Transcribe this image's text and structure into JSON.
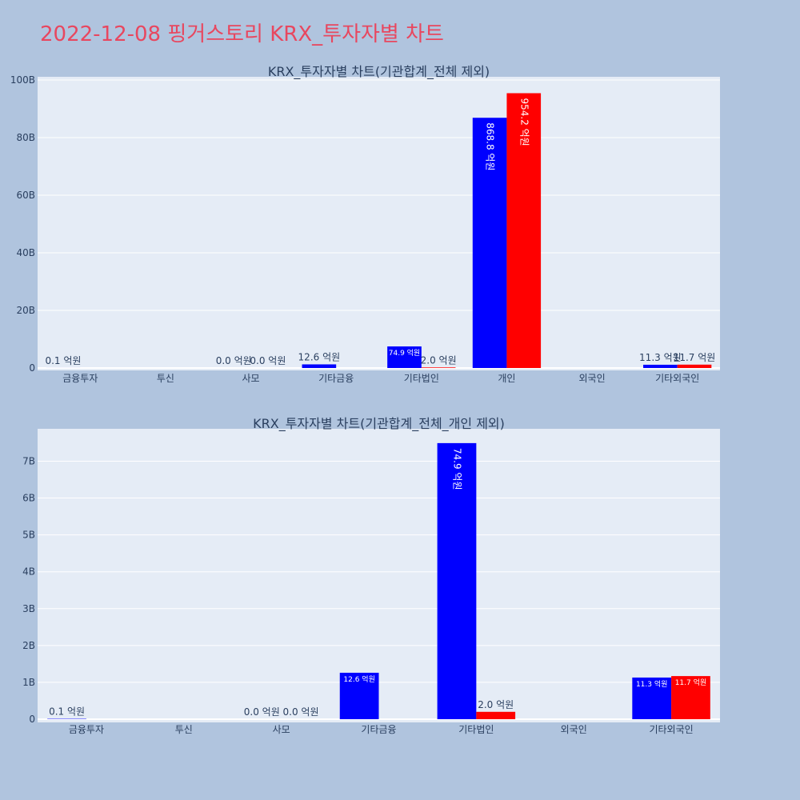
{
  "page": {
    "title": "2022-12-08 핑거스토리 KRX_투자자별 차트",
    "background": "#b0c4de",
    "title_color": "#e8475f"
  },
  "colors": {
    "plot_bg": "#e5ecf6",
    "buy": "#0000ff",
    "sell": "#ff0000",
    "grid": "#ffffff",
    "text": "#2a3f5f"
  },
  "chart_data": [
    {
      "type": "bar",
      "title": "KRX_투자자별 차트(기관합계_전체 제외)",
      "categories": [
        "금융투자",
        "투신",
        "사모",
        "기타금융",
        "기타법인",
        "개인",
        "외국인",
        "기타외국인"
      ],
      "y_tick_labels": [
        "0",
        "20B",
        "40B",
        "60B",
        "80B",
        "100B"
      ],
      "y_tick_values": [
        0,
        20,
        40,
        60,
        80,
        100
      ],
      "ylim": [
        0,
        100
      ],
      "y_unit": "B",
      "grid": true,
      "series": [
        {
          "color": "#0000ff",
          "values": [
            0.01,
            0,
            0,
            1.26,
            7.49,
            86.88,
            0,
            1.13
          ],
          "labels": [
            "0.1 억원",
            "",
            "0.0 억원",
            "12.6 억원",
            "74.9 억원",
            "868.8 억원",
            "",
            "11.3 억원"
          ]
        },
        {
          "color": "#ff0000",
          "values": [
            0,
            0,
            0,
            0,
            0.2,
            95.42,
            0,
            1.17
          ],
          "labels": [
            "",
            "",
            "0.0 억원",
            "",
            "2.0 억원",
            "954.2 억원",
            "",
            "11.7 억원"
          ]
        }
      ]
    },
    {
      "type": "bar",
      "title": "KRX_투자자별 차트(기관합계_전체_개인 제외)",
      "categories": [
        "금융투자",
        "투신",
        "사모",
        "기타금융",
        "기타법인",
        "외국인",
        "기타외국인"
      ],
      "y_tick_labels": [
        "0",
        "1B",
        "2B",
        "3B",
        "4B",
        "5B",
        "6B",
        "7B"
      ],
      "y_tick_values": [
        0,
        1,
        2,
        3,
        4,
        5,
        6,
        7
      ],
      "ylim": [
        0,
        7.9
      ],
      "y_unit": "B",
      "grid": true,
      "series": [
        {
          "color": "#0000ff",
          "values": [
            0.01,
            0,
            0,
            1.26,
            7.49,
            0,
            1.13
          ],
          "labels": [
            "0.1 억원",
            "",
            "0.0 억원",
            "12.6 억원",
            "74.9 억원",
            "",
            "11.3 억원"
          ]
        },
        {
          "color": "#ff0000",
          "values": [
            0,
            0,
            0,
            0,
            0.2,
            0,
            1.17
          ],
          "labels": [
            "",
            "",
            "0.0 억원",
            "",
            "2.0 억원",
            "",
            "11.7 억원"
          ]
        }
      ]
    }
  ]
}
